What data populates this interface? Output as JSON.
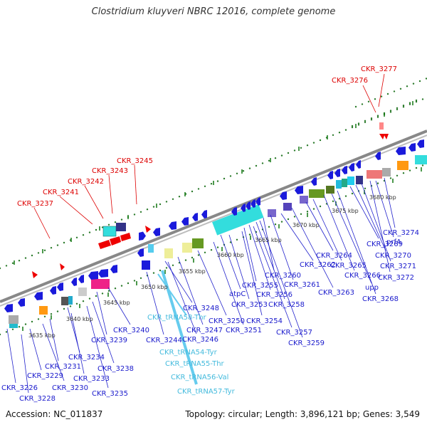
{
  "title": "Clostridium kluyveri NBRC 12016, complete genome",
  "footer": {
    "accession": "Accession: NC_011837",
    "summary": "Topology: circular; Length: 3,896,121 bp; Genes: 3,549"
  },
  "colors": {
    "backbone": "#8a8a8a",
    "gene_forward_blue": "#1a1adb",
    "label_blue": "#1a1acc",
    "label_red": "#dd0000",
    "label_cyan": "#44bbdd",
    "dotted_track": "#2a7a2a",
    "tick_green": "#117711"
  },
  "kbp_scale": [
    {
      "text": "3635 kbp"
    },
    {
      "text": "3640 kbp"
    },
    {
      "text": "3645 kbp"
    },
    {
      "text": "3650 kbp"
    },
    {
      "text": "3655 kbp"
    },
    {
      "text": "3660 kbp"
    },
    {
      "text": "3665 kbp"
    },
    {
      "text": "3670 kbp"
    },
    {
      "text": "3675 kbp"
    },
    {
      "text": "3680 kbp"
    }
  ],
  "red_labels": [
    {
      "text": "CKR_3237"
    },
    {
      "text": "CKR_3241"
    },
    {
      "text": "CKR_3242"
    },
    {
      "text": "CKR_3243"
    },
    {
      "text": "CKR_3245"
    },
    {
      "text": "CKR_3276"
    },
    {
      "text": "CKR_3277"
    }
  ],
  "blue_labels": [
    {
      "text": "CKR_3226"
    },
    {
      "text": "CKR_3228"
    },
    {
      "text": "CKR_3229"
    },
    {
      "text": "CKR_3230"
    },
    {
      "text": "CKR_3231"
    },
    {
      "text": "CKR_3233"
    },
    {
      "text": "CKR_3234"
    },
    {
      "text": "CKR_3235"
    },
    {
      "text": "CKR_3238"
    },
    {
      "text": "CKR_3239"
    },
    {
      "text": "CKR_3240"
    },
    {
      "text": "CKR_3244"
    },
    {
      "text": "CKR_3246"
    },
    {
      "text": "CKR_3247"
    },
    {
      "text": "CKR_3248"
    },
    {
      "text": "CKR_3250"
    },
    {
      "text": "CKR_3251"
    },
    {
      "text": "atpC"
    },
    {
      "text": "CKR_3253"
    },
    {
      "text": "CKR_3254"
    },
    {
      "text": "CKR_3255"
    },
    {
      "text": "CKR_3256"
    },
    {
      "text": "CKR_3257"
    },
    {
      "text": "CKR_3258"
    },
    {
      "text": "CKR_3259"
    },
    {
      "text": "CKR_3260"
    },
    {
      "text": "CKR_3261"
    },
    {
      "text": "CKR_3262"
    },
    {
      "text": "CKR_3263"
    },
    {
      "text": "CKR_3264"
    },
    {
      "text": "CKR_3265"
    },
    {
      "text": "CKR_3266"
    },
    {
      "text": "upp"
    },
    {
      "text": "CKR_3268"
    },
    {
      "text": "CKR_3269"
    },
    {
      "text": "CKR_3270"
    },
    {
      "text": "CKR_3271"
    },
    {
      "text": "CKR_3272"
    },
    {
      "text": "prfA"
    },
    {
      "text": "CKR_3274"
    }
  ],
  "trna_labels": [
    {
      "text": "CKR_tRNA58-Thr"
    },
    {
      "text": "CKR_tRNA54-Tyr"
    },
    {
      "text": "CKR_tRNA55-Thr"
    },
    {
      "text": "CKR_tRNA56-Val"
    },
    {
      "text": "CKR_tRNA57-Tyr"
    }
  ]
}
